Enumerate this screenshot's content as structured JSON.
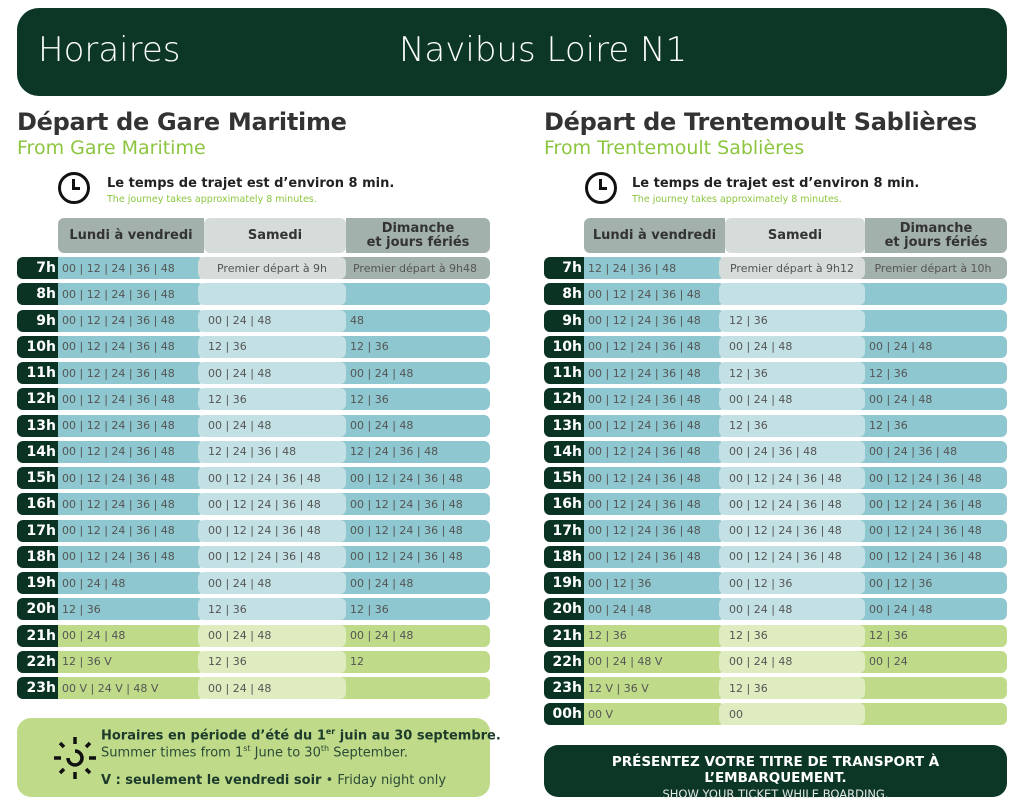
{
  "header": {
    "title": "Horaires",
    "line": "Navibus Loire N1"
  },
  "colors": {
    "dark_green": "#0c3726",
    "accent_green": "#8cc63f",
    "blue_strong": "#8ec7cf",
    "blue_light": "#c3e1e5",
    "green_strong": "#bfdb8a",
    "green_light": "#deecc0",
    "grey_strong": "#a3b1ad",
    "grey_light": "#d5dcda"
  },
  "columns": [
    "Lundi à vendredi",
    "Samedi",
    "Dimanche\net jours fériés"
  ],
  "journey": {
    "fr": "Le temps de trajet est d’environ 8 min.",
    "en": "The journey takes approximately 8 minutes."
  },
  "left": {
    "title": "Départ de Gare Maritime",
    "subtitle": "From Gare Maritime",
    "rows": [
      {
        "hour": "7h",
        "band": "grey",
        "cells": [
          "00 | 12 | 24 | 36 | 48",
          "Premier départ à 9h",
          "Premier départ à 9h48"
        ]
      },
      {
        "hour": "8h",
        "band": "blue",
        "cells": [
          "00 | 12 | 24 | 36 | 48",
          "",
          ""
        ]
      },
      {
        "hour": "9h",
        "band": "blue",
        "cells": [
          "00 | 12 | 24 | 36 | 48",
          "00 | 24 | 48",
          "48"
        ]
      },
      {
        "hour": "10h",
        "band": "blue",
        "cells": [
          "00 | 12 | 24 | 36 | 48",
          "12 | 36",
          "12 | 36"
        ]
      },
      {
        "hour": "11h",
        "band": "blue",
        "cells": [
          "00 | 12 | 24 | 36 | 48",
          "00 | 24 | 48",
          "00 | 24 | 48"
        ]
      },
      {
        "hour": "12h",
        "band": "blue",
        "cells": [
          "00 | 12 | 24 | 36 | 48",
          "12 | 36",
          "12 | 36"
        ]
      },
      {
        "hour": "13h",
        "band": "blue",
        "cells": [
          "00 | 12 | 24 | 36 | 48",
          "00 | 24 | 48",
          "00 | 24 | 48"
        ]
      },
      {
        "hour": "14h",
        "band": "blue",
        "cells": [
          "00 | 12 | 24 | 36 | 48",
          "12 | 24 | 36 | 48",
          "12 | 24 | 36 | 48"
        ]
      },
      {
        "hour": "15h",
        "band": "blue",
        "cells": [
          "00 | 12 | 24 | 36 | 48",
          "00 | 12 | 24 | 36 | 48",
          "00 | 12 | 24 | 36 | 48"
        ]
      },
      {
        "hour": "16h",
        "band": "blue",
        "cells": [
          "00 | 12 | 24 | 36 | 48",
          "00 | 12 | 24 | 36 | 48",
          "00 | 12 | 24 | 36 | 48"
        ]
      },
      {
        "hour": "17h",
        "band": "blue",
        "cells": [
          "00 | 12 | 24 | 36 | 48",
          "00 | 12 | 24 | 36 | 48",
          "00 | 12 | 24 | 36 | 48"
        ]
      },
      {
        "hour": "18h",
        "band": "blue",
        "cells": [
          "00 | 12 | 24 | 36 | 48",
          "00 | 12 | 24 | 36 | 48",
          "00 | 12 | 24 | 36 | 48"
        ]
      },
      {
        "hour": "19h",
        "band": "blue",
        "cells": [
          "00 | 24 | 48",
          "00 | 24 | 48",
          "00 | 24 | 48"
        ]
      },
      {
        "hour": "20h",
        "band": "blue",
        "cells": [
          "12 | 36",
          "12 | 36",
          "12 | 36"
        ]
      },
      {
        "hour": "21h",
        "band": "green",
        "cells": [
          "00 | 24 | 48",
          "00 | 24 | 48",
          "00 | 24 | 48"
        ]
      },
      {
        "hour": "22h",
        "band": "green",
        "cells": [
          "12 | 36 V",
          "12 | 36",
          "12"
        ]
      },
      {
        "hour": "23h",
        "band": "green",
        "cells": [
          "00 V | 24 V | 48 V",
          "00 | 24 | 48",
          ""
        ]
      }
    ]
  },
  "right": {
    "title": "Départ de Trentemoult Sablières",
    "subtitle": "From Trentemoult Sablières",
    "rows": [
      {
        "hour": "7h",
        "band": "grey",
        "cells": [
          "12 | 24 | 36 | 48",
          "Premier départ à 9h12",
          "Premier départ à 10h"
        ]
      },
      {
        "hour": "8h",
        "band": "blue",
        "cells": [
          "00 | 12 | 24 | 36 | 48",
          "",
          ""
        ]
      },
      {
        "hour": "9h",
        "band": "blue",
        "cells": [
          "00 | 12 | 24 | 36 | 48",
          "12 | 36",
          ""
        ]
      },
      {
        "hour": "10h",
        "band": "blue",
        "cells": [
          "00 | 12 | 24 | 36 | 48",
          "00 | 24 | 48",
          "00 | 24 | 48"
        ]
      },
      {
        "hour": "11h",
        "band": "blue",
        "cells": [
          "00 | 12 | 24 | 36 | 48",
          "12 | 36",
          "12 | 36"
        ]
      },
      {
        "hour": "12h",
        "band": "blue",
        "cells": [
          "00 | 12 | 24 | 36 | 48",
          "00 | 24 | 48",
          "00 | 24 | 48"
        ]
      },
      {
        "hour": "13h",
        "band": "blue",
        "cells": [
          "00 | 12 | 24 | 36 | 48",
          "12 | 36",
          "12 | 36"
        ]
      },
      {
        "hour": "14h",
        "band": "blue",
        "cells": [
          "00 | 12 | 24 | 36 | 48",
          "00 | 24 | 36 | 48",
          "00 | 24 | 36 | 48"
        ]
      },
      {
        "hour": "15h",
        "band": "blue",
        "cells": [
          "00 | 12 | 24 | 36 | 48",
          "00 | 12 | 24 | 36 | 48",
          "00 | 12 | 24 | 36 | 48"
        ]
      },
      {
        "hour": "16h",
        "band": "blue",
        "cells": [
          "00 | 12 | 24 | 36 | 48",
          "00 | 12 | 24 | 36 | 48",
          "00 | 12 | 24 | 36 | 48"
        ]
      },
      {
        "hour": "17h",
        "band": "blue",
        "cells": [
          "00 | 12 | 24 | 36 | 48",
          "00 | 12 | 24 | 36 | 48",
          "00 | 12 | 24 | 36 | 48"
        ]
      },
      {
        "hour": "18h",
        "band": "blue",
        "cells": [
          "00 | 12 | 24 | 36 | 48",
          "00 | 12 | 24 | 36 | 48",
          "00 | 12 | 24 | 36 | 48"
        ]
      },
      {
        "hour": "19h",
        "band": "blue",
        "cells": [
          "00 | 12 | 36",
          "00 | 12 | 36",
          "00 | 12 | 36"
        ]
      },
      {
        "hour": "20h",
        "band": "blue",
        "cells": [
          "00 | 24 | 48",
          "00 | 24 | 48",
          "00 | 24 | 48"
        ]
      },
      {
        "hour": "21h",
        "band": "green",
        "cells": [
          "12 | 36",
          "12 | 36",
          "12 | 36"
        ]
      },
      {
        "hour": "22h",
        "band": "green",
        "cells": [
          "00 | 24 | 48 V",
          "00 | 24 | 48",
          "00 | 24"
        ]
      },
      {
        "hour": "23h",
        "band": "green",
        "cells": [
          "12 V | 36 V",
          "12 | 36",
          ""
        ]
      },
      {
        "hour": "00h",
        "band": "green",
        "cells": [
          "00 V",
          "00",
          ""
        ]
      }
    ]
  },
  "summer": {
    "fr_before": "Horaires en période d’été du 1",
    "fr_sup": "er",
    "fr_after": " juin au 30 septembre.",
    "en_a": "Summer times from 1",
    "en_sup1": "st",
    "en_b": " June to 30",
    "en_sup2": "th",
    "en_c": " September.",
    "v_fr": "V : seulement le vendredi soir",
    "v_sep": " • ",
    "v_en": "Friday night only"
  },
  "ticket": {
    "fr": "PRÉSENTEZ VOTRE TITRE DE TRANSPORT À L’EMBARQUEMENT.",
    "en": "SHOW YOUR TICKET WHILE BOARDING."
  }
}
